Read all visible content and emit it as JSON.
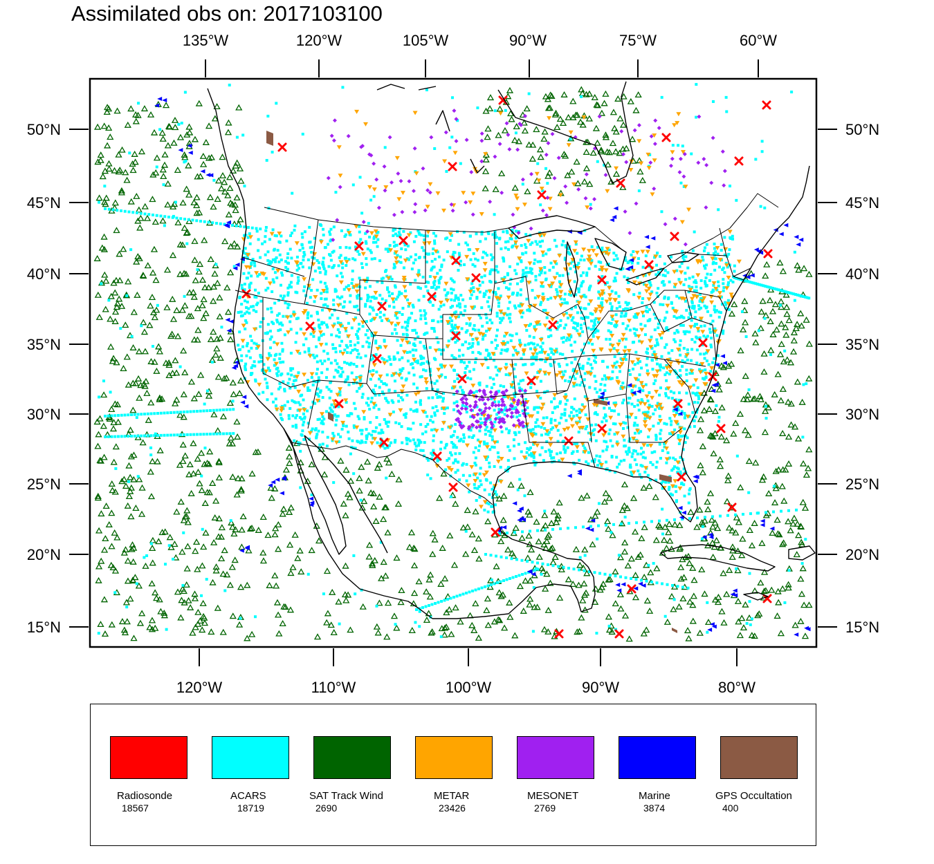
{
  "title": "Assimilated obs on: 2017103100",
  "map": {
    "projection": "lambert-conformal",
    "region": "North America / CONUS",
    "top_lon_labels": [
      "135°W",
      "120°W",
      "105°W",
      "90°W",
      "75°W",
      "60°W"
    ],
    "bottom_lon_labels": [
      "120°W",
      "110°W",
      "100°W",
      "90°W",
      "80°W"
    ],
    "lat_labels": [
      "50°N",
      "45°N",
      "40°N",
      "35°N",
      "30°N",
      "25°N",
      "20°N",
      "15°N"
    ]
  },
  "legend": [
    {
      "name": "Radiosonde",
      "count": "18567",
      "color": "#ff0000",
      "marker": "x-icon"
    },
    {
      "name": "ACARS",
      "count": "18719",
      "color": "#00ffff",
      "marker": "square-dot-icon"
    },
    {
      "name": "SAT Track Wind",
      "count": "2690",
      "color": "#006400",
      "marker": "triangle-up-icon"
    },
    {
      "name": "METAR",
      "count": "23426",
      "color": "#ffa500",
      "marker": "triangle-down-icon"
    },
    {
      "name": "MESONET",
      "count": "2769",
      "color": "#a020f0",
      "marker": "diamond-icon"
    },
    {
      "name": "Marine",
      "count": "3874",
      "color": "#0000ff",
      "marker": "triangle-left-icon"
    },
    {
      "name": "GPS Occultation",
      "count": "400",
      "color": "#8b5a44",
      "marker": "parallelogram-icon"
    }
  ]
}
